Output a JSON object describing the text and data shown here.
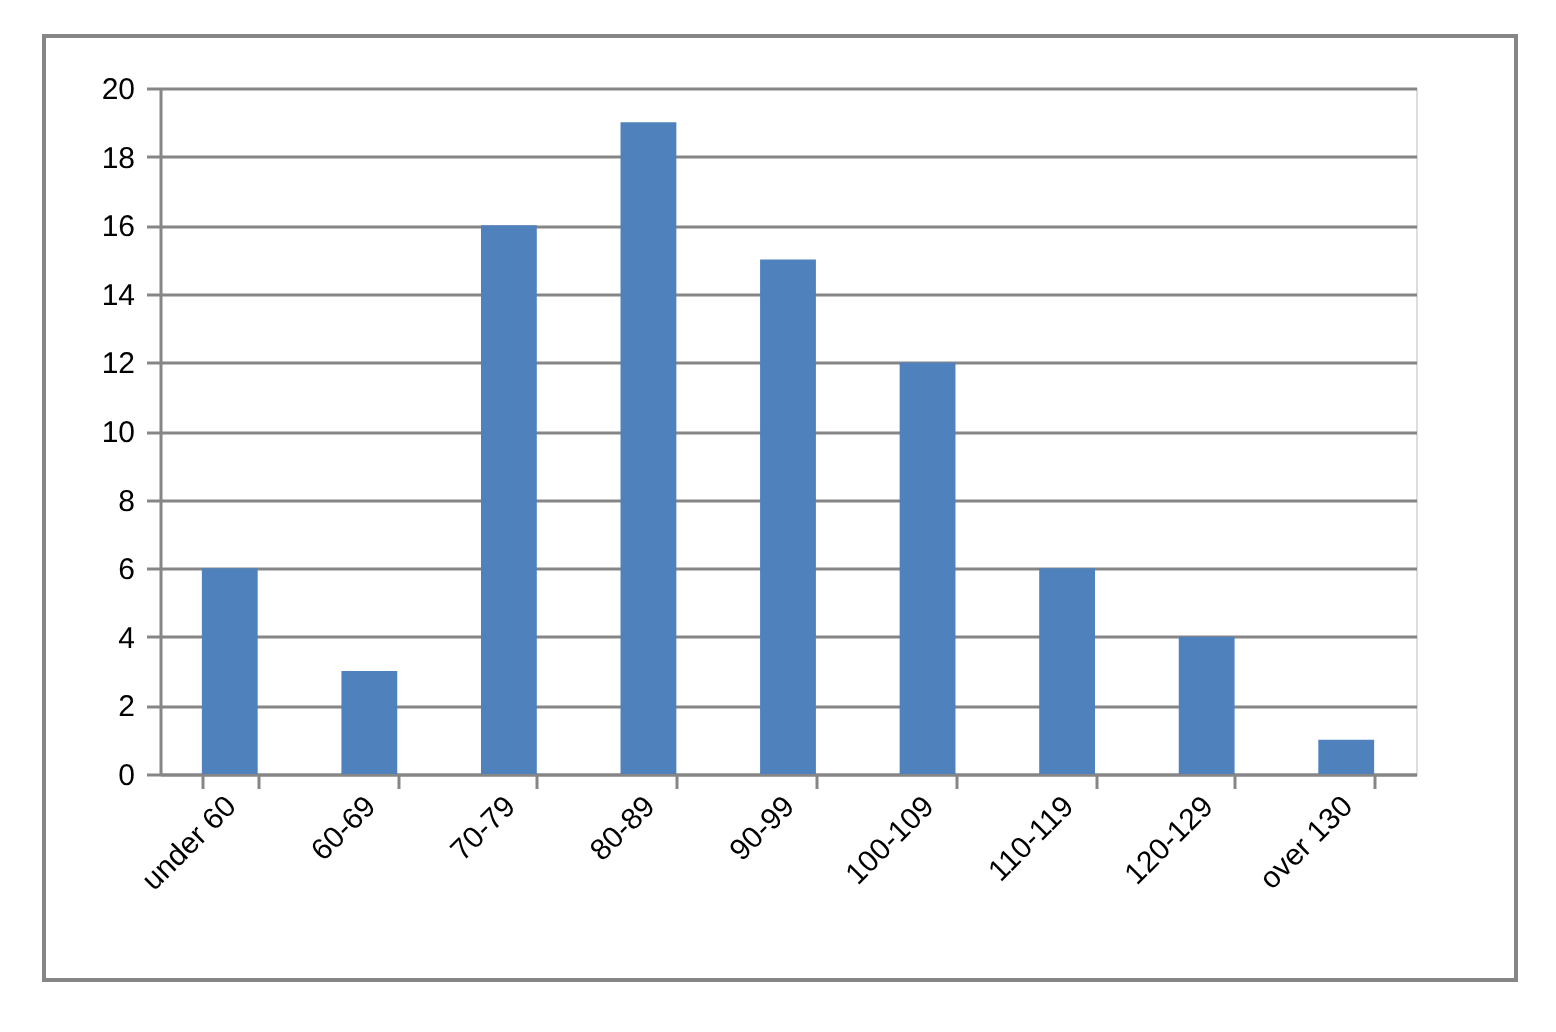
{
  "chart_data": {
    "type": "bar",
    "categories": [
      "under 60",
      "60-69",
      "70-79",
      "80-89",
      "90-99",
      "100-109",
      "110-119",
      "120-129",
      "over 130"
    ],
    "values": [
      6,
      3,
      16,
      19,
      15,
      12,
      6,
      4,
      1
    ],
    "color": "#4f81bd",
    "ylim": [
      0,
      20
    ],
    "yticks": [
      0,
      2,
      4,
      6,
      8,
      10,
      12,
      14,
      16,
      18,
      20
    ],
    "grid": "y"
  }
}
